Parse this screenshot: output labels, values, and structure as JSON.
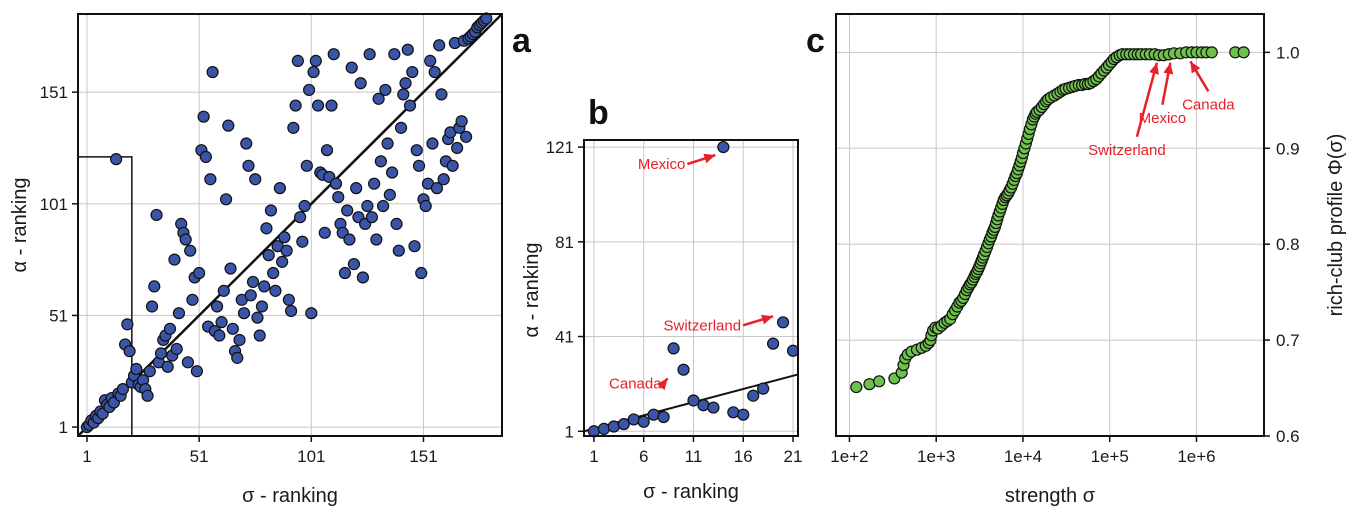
{
  "panels": {
    "a": {
      "label": "a",
      "xlabel": "σ - ranking",
      "ylabel": "α - ranking",
      "xticks": [
        1,
        51,
        101,
        151
      ],
      "yticks": [
        1,
        51,
        101,
        151
      ]
    },
    "b": {
      "label": "b",
      "xlabel": "σ - ranking",
      "ylabel": "α - ranking",
      "xticks": [
        1,
        6,
        11,
        16,
        21
      ],
      "yticks": [
        1,
        41,
        81,
        121
      ]
    },
    "c": {
      "label": "c",
      "xlabel": "strength σ",
      "ylabel": "rich-club profile Φ(σ)",
      "xticks": [
        "1e+2",
        "1e+3",
        "1e+4",
        "1e+5",
        "1e+6"
      ],
      "yticks": [
        "0.6",
        "0.7",
        "0.8",
        "0.9",
        "1.0"
      ]
    }
  },
  "annotations": {
    "b": [
      {
        "text": "Mexico",
        "x": 14,
        "y": 121
      },
      {
        "text": "Switzerland",
        "x": 20,
        "y": 47
      },
      {
        "text": "Canada",
        "x": 9,
        "y": 36
      }
    ],
    "c": [
      {
        "text": "Switzerland",
        "x": 350000,
        "y": 0.9975
      },
      {
        "text": "Mexico",
        "x": 500000,
        "y": 0.9975
      },
      {
        "text": "Canada",
        "x": 850000,
        "y": 0.999
      }
    ]
  },
  "chart_data": [
    {
      "type": "scatter",
      "panel": "a",
      "xlim": [
        -3,
        186
      ],
      "ylim": [
        -3,
        186
      ],
      "grid": true,
      "diagonal": true,
      "inset_box": {
        "x": [
          1,
          21
        ],
        "y": [
          1,
          122
        ]
      },
      "points": [
        [
          1,
          1
        ],
        [
          2,
          2
        ],
        [
          3,
          4
        ],
        [
          4,
          3
        ],
        [
          5,
          6
        ],
        [
          6,
          5
        ],
        [
          7,
          8
        ],
        [
          8,
          7
        ],
        [
          9,
          13
        ],
        [
          10,
          11
        ],
        [
          11,
          10
        ],
        [
          12,
          14
        ],
        [
          13,
          12
        ],
        [
          14,
          121
        ],
        [
          15,
          16
        ],
        [
          16,
          15
        ],
        [
          17,
          18
        ],
        [
          18,
          38
        ],
        [
          19,
          47
        ],
        [
          20,
          35
        ],
        [
          21,
          21
        ],
        [
          22,
          24
        ],
        [
          23,
          27
        ],
        [
          24,
          20
        ],
        [
          25,
          19
        ],
        [
          26,
          22
        ],
        [
          27,
          18
        ],
        [
          28,
          15
        ],
        [
          29,
          26
        ],
        [
          30,
          55
        ],
        [
          31,
          64
        ],
        [
          32,
          96
        ],
        [
          33,
          30
        ],
        [
          34,
          34
        ],
        [
          35,
          40
        ],
        [
          36,
          42
        ],
        [
          37,
          28
        ],
        [
          38,
          45
        ],
        [
          39,
          33
        ],
        [
          40,
          76
        ],
        [
          41,
          36
        ],
        [
          42,
          52
        ],
        [
          43,
          92
        ],
        [
          44,
          88
        ],
        [
          45,
          85
        ],
        [
          46,
          30
        ],
        [
          47,
          80
        ],
        [
          48,
          58
        ],
        [
          49,
          68
        ],
        [
          50,
          26
        ],
        [
          51,
          70
        ],
        [
          52,
          125
        ],
        [
          53,
          140
        ],
        [
          54,
          122
        ],
        [
          55,
          46
        ],
        [
          56,
          112
        ],
        [
          57,
          160
        ],
        [
          58,
          44
        ],
        [
          59,
          55
        ],
        [
          60,
          42
        ],
        [
          61,
          48
        ],
        [
          62,
          62
        ],
        [
          63,
          103
        ],
        [
          64,
          136
        ],
        [
          65,
          72
        ],
        [
          66,
          45
        ],
        [
          67,
          35
        ],
        [
          68,
          32
        ],
        [
          69,
          40
        ],
        [
          70,
          58
        ],
        [
          71,
          52
        ],
        [
          72,
          128
        ],
        [
          73,
          118
        ],
        [
          74,
          60
        ],
        [
          75,
          66
        ],
        [
          76,
          112
        ],
        [
          77,
          50
        ],
        [
          78,
          42
        ],
        [
          79,
          55
        ],
        [
          80,
          64
        ],
        [
          81,
          90
        ],
        [
          82,
          78
        ],
        [
          83,
          98
        ],
        [
          84,
          70
        ],
        [
          85,
          62
        ],
        [
          86,
          82
        ],
        [
          87,
          108
        ],
        [
          88,
          75
        ],
        [
          89,
          86
        ],
        [
          90,
          80
        ],
        [
          91,
          58
        ],
        [
          92,
          53
        ],
        [
          93,
          135
        ],
        [
          94,
          145
        ],
        [
          95,
          165
        ],
        [
          96,
          95
        ],
        [
          97,
          84
        ],
        [
          98,
          100
        ],
        [
          99,
          118
        ],
        [
          100,
          152
        ],
        [
          101,
          52
        ],
        [
          102,
          160
        ],
        [
          103,
          165
        ],
        [
          104,
          145
        ],
        [
          105,
          115
        ],
        [
          106,
          114
        ],
        [
          107,
          88
        ],
        [
          108,
          125
        ],
        [
          109,
          113
        ],
        [
          110,
          145
        ],
        [
          111,
          168
        ],
        [
          112,
          110
        ],
        [
          113,
          104
        ],
        [
          114,
          92
        ],
        [
          115,
          88
        ],
        [
          116,
          70
        ],
        [
          117,
          98
        ],
        [
          118,
          85
        ],
        [
          119,
          162
        ],
        [
          120,
          74
        ],
        [
          121,
          108
        ],
        [
          122,
          95
        ],
        [
          123,
          155
        ],
        [
          124,
          68
        ],
        [
          125,
          92
        ],
        [
          126,
          100
        ],
        [
          127,
          168
        ],
        [
          128,
          95
        ],
        [
          129,
          110
        ],
        [
          130,
          85
        ],
        [
          131,
          148
        ],
        [
          132,
          120
        ],
        [
          133,
          100
        ],
        [
          134,
          152
        ],
        [
          135,
          128
        ],
        [
          136,
          105
        ],
        [
          137,
          115
        ],
        [
          138,
          168
        ],
        [
          139,
          92
        ],
        [
          140,
          80
        ],
        [
          141,
          135
        ],
        [
          142,
          150
        ],
        [
          143,
          155
        ],
        [
          144,
          170
        ],
        [
          145,
          145
        ],
        [
          146,
          160
        ],
        [
          147,
          82
        ],
        [
          148,
          125
        ],
        [
          149,
          118
        ],
        [
          150,
          70
        ],
        [
          151,
          103
        ],
        [
          152,
          100
        ],
        [
          153,
          110
        ],
        [
          154,
          165
        ],
        [
          155,
          128
        ],
        [
          156,
          160
        ],
        [
          157,
          108
        ],
        [
          158,
          172
        ],
        [
          159,
          150
        ],
        [
          160,
          112
        ],
        [
          161,
          120
        ],
        [
          162,
          130
        ],
        [
          163,
          133
        ],
        [
          164,
          118
        ],
        [
          165,
          173
        ],
        [
          166,
          126
        ],
        [
          167,
          135
        ],
        [
          168,
          138
        ],
        [
          169,
          174
        ],
        [
          170,
          131
        ],
        [
          171,
          175
        ],
        [
          172,
          176
        ],
        [
          173,
          177
        ],
        [
          174,
          178
        ],
        [
          175,
          180
        ],
        [
          176,
          181
        ],
        [
          177,
          182
        ],
        [
          178,
          183
        ],
        [
          179,
          184
        ]
      ]
    },
    {
      "type": "scatter",
      "panel": "b",
      "xlim": [
        0,
        21.5
      ],
      "ylim": [
        -1,
        124
      ],
      "grid": true,
      "fit_line": {
        "x": [
          0,
          21.5
        ],
        "y": [
          1,
          25
        ]
      },
      "points": [
        [
          1,
          1
        ],
        [
          2,
          2
        ],
        [
          3,
          3
        ],
        [
          4,
          4
        ],
        [
          5,
          6
        ],
        [
          6,
          5
        ],
        [
          7,
          8
        ],
        [
          8,
          7
        ],
        [
          9,
          36
        ],
        [
          10,
          27
        ],
        [
          11,
          14
        ],
        [
          12,
          12
        ],
        [
          13,
          11
        ],
        [
          14,
          121
        ],
        [
          15,
          9
        ],
        [
          16,
          8
        ],
        [
          17,
          16
        ],
        [
          18,
          19
        ],
        [
          19,
          38
        ],
        [
          20,
          47
        ],
        [
          21,
          35
        ]
      ]
    },
    {
      "type": "scatter",
      "panel": "c",
      "xscale": "log",
      "xlim": [
        70,
        6000000
      ],
      "ylim": [
        0.6,
        1.04
      ],
      "grid": true,
      "points": [
        [
          120,
          0.651
        ],
        [
          170,
          0.654
        ],
        [
          220,
          0.657
        ],
        [
          330,
          0.66
        ],
        [
          400,
          0.666
        ],
        [
          420,
          0.674
        ],
        [
          440,
          0.681
        ],
        [
          470,
          0.685
        ],
        [
          520,
          0.688
        ],
        [
          600,
          0.69
        ],
        [
          680,
          0.692
        ],
        [
          760,
          0.694
        ],
        [
          820,
          0.697
        ],
        [
          860,
          0.7
        ],
        [
          880,
          0.705
        ],
        [
          920,
          0.71
        ],
        [
          980,
          0.713
        ],
        [
          1050,
          0.712
        ],
        [
          1150,
          0.715
        ],
        [
          1250,
          0.718
        ],
        [
          1350,
          0.72
        ],
        [
          1450,
          0.722
        ],
        [
          1550,
          0.727
        ],
        [
          1650,
          0.731
        ],
        [
          1750,
          0.735
        ],
        [
          1850,
          0.739
        ],
        [
          1950,
          0.741
        ],
        [
          2050,
          0.744
        ],
        [
          2150,
          0.748
        ],
        [
          2250,
          0.752
        ],
        [
          2350,
          0.755
        ],
        [
          2450,
          0.758
        ],
        [
          2550,
          0.76
        ],
        [
          2650,
          0.763
        ],
        [
          2750,
          0.766
        ],
        [
          2850,
          0.769
        ],
        [
          2950,
          0.771
        ],
        [
          3050,
          0.774
        ],
        [
          3150,
          0.777
        ],
        [
          3250,
          0.78
        ],
        [
          3350,
          0.783
        ],
        [
          3450,
          0.786
        ],
        [
          3550,
          0.789
        ],
        [
          3700,
          0.793
        ],
        [
          3850,
          0.797
        ],
        [
          4000,
          0.801
        ],
        [
          4150,
          0.805
        ],
        [
          4300,
          0.808
        ],
        [
          4450,
          0.812
        ],
        [
          4600,
          0.815
        ],
        [
          4750,
          0.818
        ],
        [
          4900,
          0.822
        ],
        [
          5050,
          0.826
        ],
        [
          5200,
          0.83
        ],
        [
          5400,
          0.834
        ],
        [
          5600,
          0.838
        ],
        [
          5800,
          0.842
        ],
        [
          6000,
          0.846
        ],
        [
          6250,
          0.849
        ],
        [
          6500,
          0.851
        ],
        [
          6750,
          0.853
        ],
        [
          7000,
          0.856
        ],
        [
          7300,
          0.859
        ],
        [
          7600,
          0.863
        ],
        [
          7900,
          0.867
        ],
        [
          8200,
          0.871
        ],
        [
          8500,
          0.874
        ],
        [
          8800,
          0.878
        ],
        [
          9100,
          0.882
        ],
        [
          9400,
          0.886
        ],
        [
          9700,
          0.89
        ],
        [
          10000,
          0.895
        ],
        [
          10400,
          0.9
        ],
        [
          10800,
          0.905
        ],
        [
          11200,
          0.91
        ],
        [
          11600,
          0.915
        ],
        [
          12000,
          0.92
        ],
        [
          12500,
          0.925
        ],
        [
          13000,
          0.93
        ],
        [
          13500,
          0.933
        ],
        [
          14000,
          0.936
        ],
        [
          14500,
          0.938
        ],
        [
          15500,
          0.94
        ],
        [
          16500,
          0.943
        ],
        [
          17500,
          0.946
        ],
        [
          18500,
          0.949
        ],
        [
          19500,
          0.951
        ],
        [
          21000,
          0.953
        ],
        [
          23000,
          0.955
        ],
        [
          25000,
          0.957
        ],
        [
          27000,
          0.959
        ],
        [
          29000,
          0.961
        ],
        [
          31000,
          0.962
        ],
        [
          34000,
          0.963
        ],
        [
          37000,
          0.964
        ],
        [
          40000,
          0.965
        ],
        [
          44000,
          0.966
        ],
        [
          48000,
          0.966
        ],
        [
          52000,
          0.967
        ],
        [
          56000,
          0.967
        ],
        [
          60000,
          0.968
        ],
        [
          65000,
          0.97
        ],
        [
          70000,
          0.972
        ],
        [
          75000,
          0.975
        ],
        [
          80000,
          0.978
        ],
        [
          86000,
          0.981
        ],
        [
          92000,
          0.984
        ],
        [
          98000,
          0.987
        ],
        [
          105000,
          0.99
        ],
        [
          112000,
          0.993
        ],
        [
          120000,
          0.995
        ],
        [
          130000,
          0.997
        ],
        [
          140000,
          0.998
        ],
        [
          155000,
          0.998
        ],
        [
          170000,
          0.998
        ],
        [
          190000,
          0.998
        ],
        [
          210000,
          0.998
        ],
        [
          230000,
          0.998
        ],
        [
          260000,
          0.998
        ],
        [
          290000,
          0.998
        ],
        [
          330000,
          0.998
        ],
        [
          370000,
          0.997
        ],
        [
          420000,
          0.997
        ],
        [
          480000,
          0.998
        ],
        [
          550000,
          0.999
        ],
        [
          650000,
          0.999
        ],
        [
          760000,
          1.0
        ],
        [
          880000,
          1.0
        ],
        [
          1000000,
          1.0
        ],
        [
          1150000,
          1.0
        ],
        [
          1300000,
          1.0
        ],
        [
          1500000,
          1.0
        ],
        [
          2800000,
          1.0
        ],
        [
          3500000,
          1.0
        ]
      ]
    }
  ]
}
